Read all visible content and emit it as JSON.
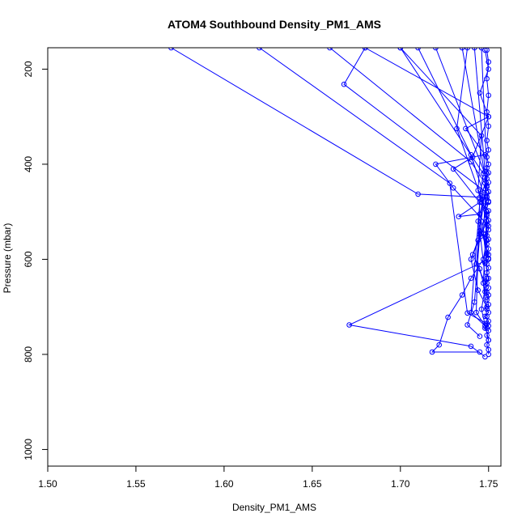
{
  "chart_data": {
    "type": "line",
    "title": "ATOM4 Southbound Density_PM1_AMS",
    "xlabel": "Density_PM1_AMS",
    "ylabel": "Pressure (mbar)",
    "xlim": [
      1.5,
      1.757
    ],
    "ylim": [
      1035,
      155
    ],
    "y_reversed": true,
    "grid": false,
    "marker": "open-circle",
    "x_ticks": [
      "1.50",
      "1.55",
      "1.60",
      "1.65",
      "1.70",
      "1.75"
    ],
    "y_ticks": [
      "200",
      "400",
      "600",
      "800",
      "1000"
    ],
    "colors": {
      "series": "#0000ff",
      "frame": "#000000"
    },
    "series": [
      {
        "values": [
          [
            1.75,
            800
          ],
          [
            1.75,
            790
          ],
          [
            1.749,
            780
          ],
          [
            1.75,
            770
          ],
          [
            1.749,
            760
          ],
          [
            1.75,
            750
          ],
          [
            1.748,
            745
          ],
          [
            1.75,
            740
          ],
          [
            1.749,
            735
          ],
          [
            1.75,
            730
          ],
          [
            1.748,
            720
          ],
          [
            1.75,
            712
          ],
          [
            1.749,
            705
          ],
          [
            1.75,
            695
          ],
          [
            1.749,
            685
          ],
          [
            1.75,
            675
          ],
          [
            1.748,
            668
          ],
          [
            1.75,
            660
          ],
          [
            1.749,
            650
          ],
          [
            1.75,
            640
          ],
          [
            1.749,
            628
          ],
          [
            1.75,
            618
          ],
          [
            1.748,
            608
          ],
          [
            1.75,
            598
          ],
          [
            1.749,
            588
          ],
          [
            1.75,
            578
          ],
          [
            1.749,
            568
          ],
          [
            1.75,
            558
          ],
          [
            1.748,
            548
          ],
          [
            1.75,
            538
          ],
          [
            1.749,
            528
          ],
          [
            1.75,
            518
          ],
          [
            1.749,
            508
          ],
          [
            1.75,
            498
          ],
          [
            1.748,
            488
          ],
          [
            1.75,
            478
          ],
          [
            1.749,
            468
          ],
          [
            1.75,
            458
          ],
          [
            1.749,
            448
          ],
          [
            1.75,
            438
          ],
          [
            1.748,
            428
          ],
          [
            1.75,
            418
          ],
          [
            1.749,
            408
          ],
          [
            1.75,
            400
          ],
          [
            1.749,
            385
          ],
          [
            1.75,
            370
          ],
          [
            1.749,
            350
          ],
          [
            1.75,
            320
          ],
          [
            1.749,
            290
          ],
          [
            1.75,
            255
          ],
          [
            1.749,
            220
          ],
          [
            1.75,
            185
          ],
          [
            1.749,
            160
          ]
        ]
      },
      {
        "values": [
          [
            1.745,
            795
          ],
          [
            1.718,
            795
          ],
          [
            1.722,
            780
          ],
          [
            1.727,
            722
          ],
          [
            1.735,
            675
          ],
          [
            1.74,
            640
          ],
          [
            1.747,
            600
          ],
          [
            1.749,
            560
          ],
          [
            1.75,
            530
          ],
          [
            1.73,
            450
          ],
          [
            1.72,
            400
          ],
          [
            1.748,
            380
          ],
          [
            1.737,
            325
          ],
          [
            1.75,
            300
          ],
          [
            1.745,
            250
          ],
          [
            1.75,
            200
          ],
          [
            1.748,
            160
          ]
        ]
      },
      {
        "values": [
          [
            1.748,
            805
          ],
          [
            1.74,
            783
          ],
          [
            1.671,
            738
          ],
          [
            1.75,
            600
          ],
          [
            1.745,
            505
          ],
          [
            1.733,
            510
          ],
          [
            1.749,
            470
          ],
          [
            1.71,
            463
          ],
          [
            1.57,
            155
          ]
        ]
      },
      {
        "values": [
          [
            1.749,
            735
          ],
          [
            1.738,
            713
          ],
          [
            1.728,
            440
          ],
          [
            1.62,
            155
          ]
        ]
      },
      {
        "values": [
          [
            1.745,
            762
          ],
          [
            1.738,
            738
          ],
          [
            1.742,
            690
          ],
          [
            1.745,
            548
          ],
          [
            1.75,
            480
          ],
          [
            1.749,
            460
          ],
          [
            1.668,
            232
          ],
          [
            1.68,
            155
          ]
        ]
      },
      {
        "values": [
          [
            1.749,
            680
          ],
          [
            1.745,
            620
          ],
          [
            1.741,
            590
          ],
          [
            1.744,
            560
          ],
          [
            1.749,
            550
          ],
          [
            1.749,
            500
          ],
          [
            1.73,
            410
          ],
          [
            1.741,
            385
          ],
          [
            1.75,
            300
          ],
          [
            1.68,
            155
          ]
        ]
      },
      {
        "values": [
          [
            1.748,
            740
          ],
          [
            1.74,
            712
          ],
          [
            1.745,
            480
          ],
          [
            1.748,
            440
          ],
          [
            1.74,
            395
          ],
          [
            1.66,
            155
          ]
        ]
      },
      {
        "values": [
          [
            1.749,
            700
          ],
          [
            1.744,
            665
          ],
          [
            1.74,
            600
          ],
          [
            1.749,
            520
          ],
          [
            1.744,
            455
          ],
          [
            1.746,
            340
          ],
          [
            1.7,
            155
          ]
        ]
      },
      {
        "values": [
          [
            1.749,
            745
          ],
          [
            1.743,
            712
          ],
          [
            1.745,
            470
          ],
          [
            1.747,
            420
          ],
          [
            1.7,
            155
          ]
        ]
      },
      {
        "values": [
          [
            1.748,
            648
          ],
          [
            1.743,
            610
          ],
          [
            1.747,
            460
          ],
          [
            1.74,
            380
          ],
          [
            1.71,
            155
          ]
        ]
      },
      {
        "values": [
          [
            1.749,
            670
          ],
          [
            1.745,
            540
          ],
          [
            1.749,
            430
          ],
          [
            1.72,
            155
          ]
        ]
      },
      {
        "values": [
          [
            1.75,
            590
          ],
          [
            1.744,
            520
          ],
          [
            1.749,
            445
          ],
          [
            1.735,
            155
          ]
        ]
      },
      {
        "values": [
          [
            1.749,
            720
          ],
          [
            1.747,
            650
          ],
          [
            1.749,
            505
          ],
          [
            1.732,
            325
          ],
          [
            1.738,
            155
          ]
        ]
      },
      {
        "values": [
          [
            1.75,
            770
          ],
          [
            1.746,
            705
          ],
          [
            1.749,
            640
          ],
          [
            1.748,
            415
          ],
          [
            1.742,
            155
          ]
        ]
      },
      {
        "values": [
          [
            1.749,
            610
          ],
          [
            1.747,
            545
          ],
          [
            1.749,
            420
          ],
          [
            1.746,
            155
          ]
        ]
      }
    ]
  }
}
